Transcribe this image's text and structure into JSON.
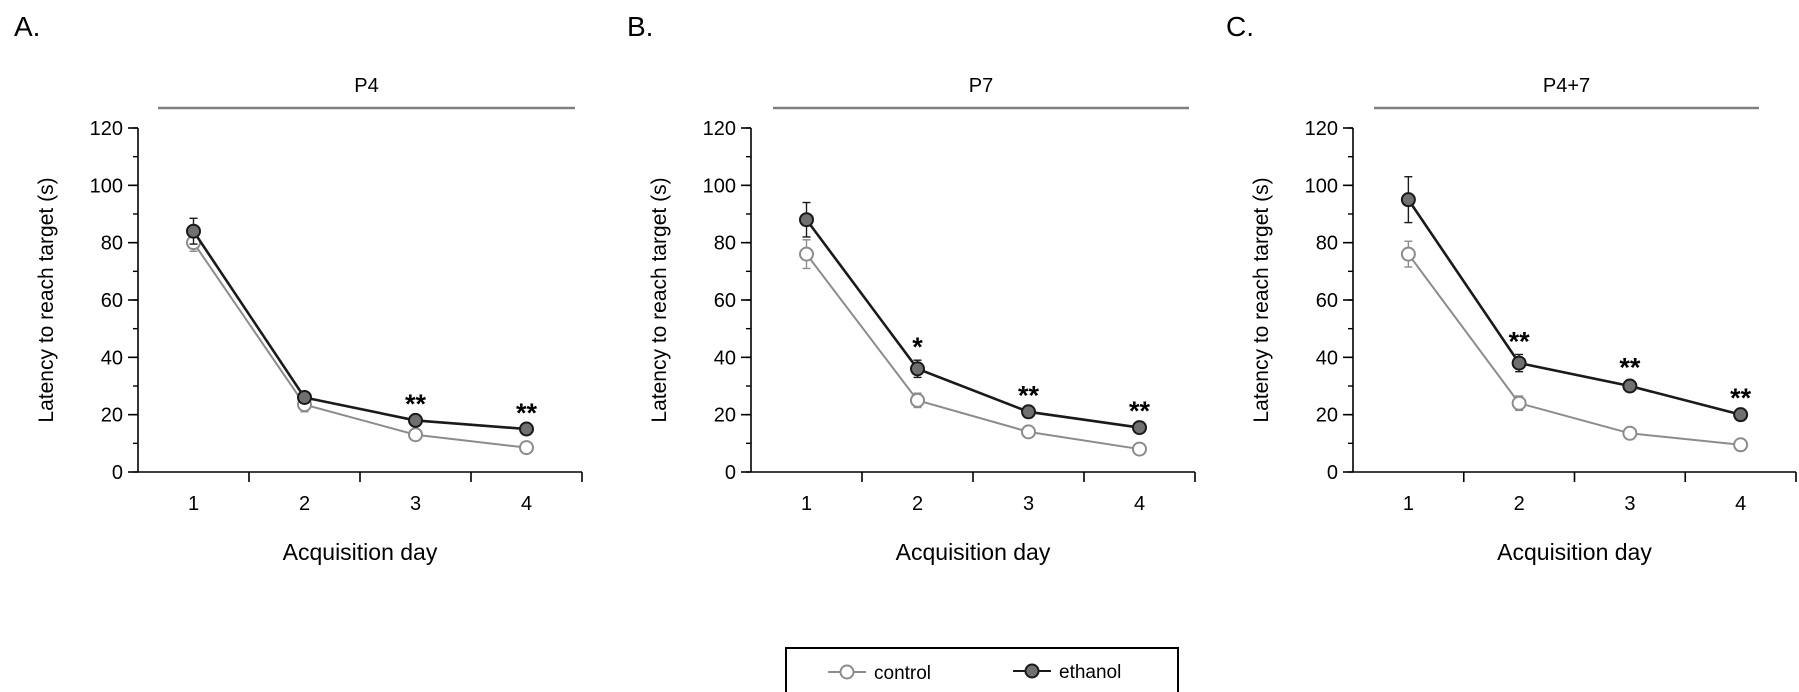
{
  "chart_data": [
    {
      "type": "line",
      "panel_label": "A.",
      "group_label": "P4",
      "xlabel": "Acquisition day",
      "ylabel": "Latency to reach target (s)",
      "ylim": [
        0,
        120
      ],
      "yticks": [
        0,
        20,
        40,
        60,
        80,
        100,
        120
      ],
      "x": [
        1,
        2,
        3,
        4
      ],
      "series": [
        {
          "name": "control",
          "values": [
            80,
            23.5,
            13,
            8.5
          ],
          "errors": [
            3,
            2.5,
            1.5,
            1.2
          ],
          "marker": "open-circle",
          "color": "#8c8c8c"
        },
        {
          "name": "ethanol",
          "values": [
            84,
            26,
            18,
            15
          ],
          "errors": [
            4.5,
            1.5,
            1.2,
            1
          ],
          "marker": "filled-circle",
          "color": "#1a1a1a"
        }
      ],
      "annotations": [
        {
          "x": 3,
          "text": "**"
        },
        {
          "x": 4,
          "text": "**"
        }
      ]
    },
    {
      "type": "line",
      "panel_label": "B.",
      "group_label": "P7",
      "xlabel": "Acquisition day",
      "ylabel": "Latency to reach target (s)",
      "ylim": [
        0,
        120
      ],
      "yticks": [
        0,
        20,
        40,
        60,
        80,
        100,
        120
      ],
      "x": [
        1,
        2,
        3,
        4
      ],
      "series": [
        {
          "name": "control",
          "values": [
            76,
            25,
            14,
            8
          ],
          "errors": [
            5,
            2.5,
            1.2,
            1
          ],
          "marker": "open-circle",
          "color": "#8c8c8c"
        },
        {
          "name": "ethanol",
          "values": [
            88,
            36,
            21,
            15.5
          ],
          "errors": [
            6,
            3,
            1.2,
            1.2
          ],
          "marker": "filled-circle",
          "color": "#1a1a1a"
        }
      ],
      "annotations": [
        {
          "x": 2,
          "text": "*"
        },
        {
          "x": 3,
          "text": "**"
        },
        {
          "x": 4,
          "text": "**"
        }
      ]
    },
    {
      "type": "line",
      "panel_label": "C.",
      "group_label": "P4+7",
      "xlabel": "Acquisition day",
      "ylabel": "Latency to reach target (s)",
      "ylim": [
        0,
        120
      ],
      "yticks": [
        0,
        20,
        40,
        60,
        80,
        100,
        120
      ],
      "x": [
        1,
        2,
        3,
        4
      ],
      "series": [
        {
          "name": "control",
          "values": [
            76,
            24,
            13.5,
            9.5
          ],
          "errors": [
            4.5,
            2.5,
            1,
            1
          ],
          "marker": "open-circle",
          "color": "#8c8c8c"
        },
        {
          "name": "ethanol",
          "values": [
            95,
            38,
            30,
            20
          ],
          "errors": [
            8,
            3,
            2,
            1.2
          ],
          "marker": "filled-circle",
          "color": "#1a1a1a"
        }
      ],
      "annotations": [
        {
          "x": 2,
          "text": "**"
        },
        {
          "x": 3,
          "text": "**"
        },
        {
          "x": 4,
          "text": "**"
        }
      ]
    }
  ],
  "legend": {
    "position": "bottom-center",
    "entries": [
      {
        "label": "control",
        "marker": "open-circle",
        "color": "#8c8c8c"
      },
      {
        "label": "ethanol",
        "marker": "filled-circle",
        "color": "#1a1a1a"
      }
    ]
  },
  "colors": {
    "control_line": "#8c8c8c",
    "ethanol_line": "#1a1a1a",
    "ethanol_fill": "#707070",
    "group_bar": "#808080"
  }
}
